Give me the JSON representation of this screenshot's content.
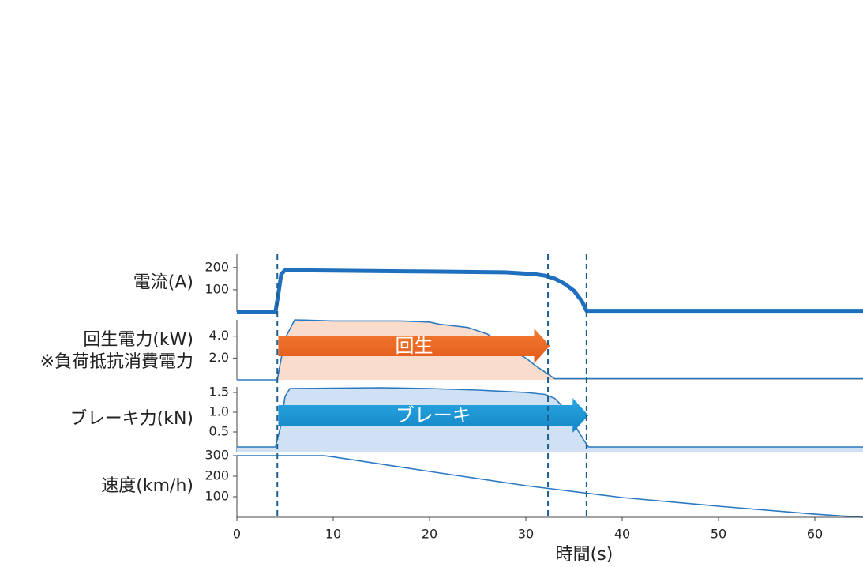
{
  "chart_data": [
    {
      "type": "line",
      "title": "電流(A)",
      "color": "#1f6fbf",
      "line_width": 5,
      "x": [
        0,
        4.0,
        4.3,
        4.6,
        5,
        10,
        20,
        28,
        31,
        32,
        33,
        34,
        35,
        35.8,
        36.3,
        65
      ],
      "values": [
        0,
        0,
        80,
        170,
        188,
        186,
        182,
        178,
        170,
        163,
        150,
        128,
        95,
        50,
        5,
        5
      ],
      "xlim": [
        0,
        65
      ],
      "ylim": [
        0,
        260
      ],
      "yticks": [
        100,
        200
      ]
    },
    {
      "type": "area",
      "title": "回生電力(kW)",
      "subtitle": "※負荷抵抗消費電力",
      "color": "#2a78c2",
      "fill": "#fadccd",
      "x": [
        0,
        4.2,
        4.5,
        5,
        6,
        10,
        17,
        20,
        21,
        24,
        26,
        28,
        30,
        31,
        32,
        33,
        65
      ],
      "values": [
        0,
        0,
        1.5,
        3.8,
        5.5,
        5.4,
        5.4,
        5.3,
        5.1,
        4.8,
        4.2,
        3.0,
        2.0,
        1.3,
        0.7,
        0.1,
        0.1
      ],
      "xlim": [
        0,
        65
      ],
      "ylim": [
        0,
        5.5
      ],
      "yticks": [
        {
          "value": 2,
          "label": "2.0"
        },
        {
          "value": 4,
          "label": "4.0"
        }
      ],
      "arrow": {
        "text": "回生",
        "x": [
          4.3,
          32.5
        ],
        "colors": [
          "#f37a2f",
          "#e35a1c"
        ]
      }
    },
    {
      "type": "area",
      "title": "ブレーキ力(kN)",
      "color": "#2a78c2",
      "fill": "#cfe1f2",
      "x": [
        0,
        4,
        4.5,
        5,
        5.5,
        10,
        15,
        20,
        25,
        30,
        32,
        33,
        34,
        35,
        36,
        36.5,
        65
      ],
      "values": [
        0.12,
        0.12,
        0.6,
        1.4,
        1.6,
        1.61,
        1.62,
        1.6,
        1.56,
        1.5,
        1.45,
        1.35,
        1.1,
        0.7,
        0.3,
        0.12,
        0.12
      ],
      "xlim": [
        0,
        65
      ],
      "ylim": [
        0,
        1.64
      ],
      "yticks": [
        0.5,
        {
          "value": 1,
          "label": "1.0"
        },
        1.5
      ],
      "arrow": {
        "text": "ブレーキ",
        "x": [
          4.3,
          36.5
        ],
        "colors": [
          "#29a6e0",
          "#1486c8"
        ]
      }
    },
    {
      "type": "line",
      "title": "速度(km/h)",
      "color": "#2a78c2",
      "line_width": 1.6,
      "x": [
        0,
        9,
        10,
        20,
        30,
        40,
        50,
        60,
        65
      ],
      "values": [
        300,
        300,
        294,
        223,
        154,
        96,
        54,
        15,
        0
      ],
      "xlim": [
        0,
        65
      ],
      "ylim": [
        0,
        300
      ],
      "yticks": [
        100,
        200,
        300
      ],
      "xticks": [
        0,
        10,
        20,
        30,
        40,
        50,
        60
      ],
      "x_label": "時間(s)",
      "vlines": [
        4.2,
        32.3,
        36.3
      ]
    }
  ]
}
